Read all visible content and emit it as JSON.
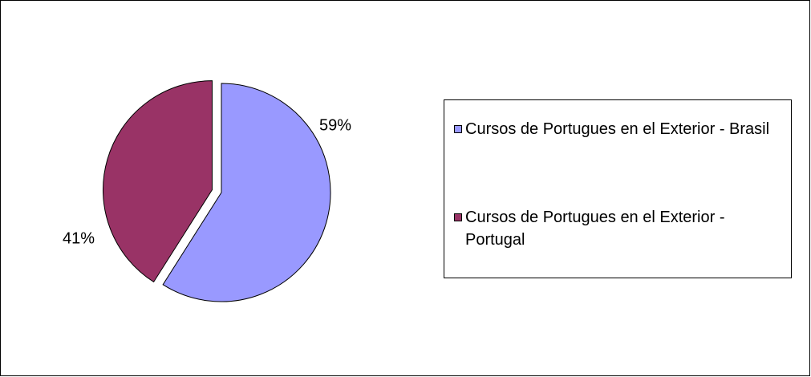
{
  "chart_data": {
    "type": "pie",
    "categories": [
      "Cursos de Portugues en el Exterior - Brasil",
      "Cursos de Portugues en el Exterior - Portugal"
    ],
    "values": [
      59,
      41
    ],
    "value_labels": [
      "59%",
      "41%"
    ],
    "colors": [
      "#9999ff",
      "#993366"
    ],
    "legend": "right"
  }
}
